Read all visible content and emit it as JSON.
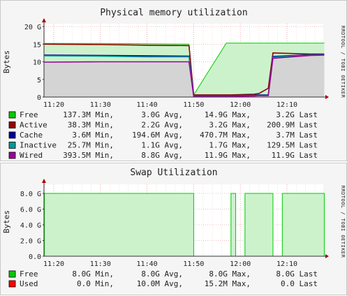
{
  "charts": [
    {
      "title": "Physical memory utilization",
      "ylabel": "Bytes",
      "watermark": "RRDTOOL / TOBI OETIKER",
      "yticks": [
        "0",
        "5",
        "10",
        "15",
        "20 G"
      ],
      "xticks": [
        "11:20",
        "11:30",
        "11:40",
        "11:50",
        "12:00",
        "12:10"
      ],
      "legend": [
        {
          "name": "Free",
          "color": "#00cc00",
          "min": "137.3M Min,",
          "avg": "3.0G Avg,",
          "max": "14.9G Max,",
          "last": "3.2G Last"
        },
        {
          "name": "Active",
          "color": "#990000",
          "min": "38.3M Min,",
          "avg": "2.2G Avg,",
          "max": "3.2G Max,",
          "last": "200.9M Last"
        },
        {
          "name": "Cache",
          "color": "#000099",
          "min": "3.6M Min,",
          "avg": "194.6M Avg,",
          "max": "470.7M Max,",
          "last": "3.7M Last"
        },
        {
          "name": "Inactive",
          "color": "#009999",
          "min": "25.7M Min,",
          "avg": "1.1G Avg,",
          "max": "1.7G Max,",
          "last": "129.5M Last"
        },
        {
          "name": "Wired",
          "color": "#990099",
          "min": "393.5M Min,",
          "avg": "8.8G Avg,",
          "max": "11.9G Max,",
          "last": "11.9G Last"
        }
      ]
    },
    {
      "title": "Swap Utilization",
      "ylabel": "Bytes",
      "watermark": "RRDTOOL / TOBI OETIKER",
      "yticks": [
        "0.0",
        "2.0 G",
        "4.0 G",
        "6.0 G",
        "8.0 G"
      ],
      "xticks": [
        "11:20",
        "11:30",
        "11:40",
        "11:50",
        "12:00",
        "12:10"
      ],
      "legend": [
        {
          "name": "Free",
          "color": "#00cc00",
          "min": "8.0G Min,",
          "avg": "8.0G Avg,",
          "max": "8.0G Max,",
          "last": "8.0G Last"
        },
        {
          "name": "Used",
          "color": "#ff0000",
          "min": "0.0 Min,",
          "avg": "10.0M Avg,",
          "max": "15.2M Max,",
          "last": "0.0 Last"
        }
      ]
    }
  ],
  "chart_data": [
    {
      "type": "area",
      "title": "Physical memory utilization",
      "ylabel": "Bytes",
      "xlabel": "",
      "ylim_GB": [
        0,
        20
      ],
      "x": [
        "11:18",
        "11:30",
        "11:40",
        "11:49",
        "11:50",
        "11:57",
        "11:58",
        "12:03",
        "12:04",
        "12:06",
        "12:07",
        "12:15",
        "12:18"
      ],
      "series": [
        {
          "name": "Wired",
          "values": [
            9.9,
            10.0,
            10.0,
            10.0,
            0.2,
            0.2,
            0.2,
            0.3,
            0.4,
            0.4,
            11.0,
            11.8,
            11.9
          ]
        },
        {
          "name": "Inactive",
          "values": [
            11.7,
            11.6,
            11.4,
            11.4,
            0.3,
            0.3,
            0.3,
            0.4,
            0.5,
            0.5,
            11.3,
            11.9,
            12.0
          ]
        },
        {
          "name": "Cache",
          "values": [
            11.9,
            11.8,
            11.7,
            11.6,
            0.4,
            0.4,
            0.4,
            0.5,
            0.6,
            0.6,
            11.5,
            12.0,
            12.1
          ]
        },
        {
          "name": "Active",
          "values": [
            15.0,
            14.9,
            14.7,
            14.6,
            0.6,
            0.6,
            0.6,
            0.8,
            1.0,
            2.5,
            12.5,
            12.2,
            12.2
          ]
        },
        {
          "name": "Free",
          "values": [
            15.2,
            15.2,
            15.1,
            15.0,
            0.6,
            15.3,
            15.3,
            15.3,
            15.3,
            15.3,
            15.3,
            15.3,
            15.3
          ]
        }
      ]
    },
    {
      "type": "area",
      "title": "Swap Utilization",
      "ylabel": "Bytes",
      "xlabel": "",
      "ylim_GB": [
        0,
        8.8
      ],
      "segments": [
        {
          "name": "Free",
          "start": "11:18",
          "end": "11:50",
          "value_GB": 8.0
        },
        {
          "name": "Free",
          "start": "11:58",
          "end": "11:59",
          "value_GB": 8.0
        },
        {
          "name": "Free",
          "start": "12:01",
          "end": "12:07",
          "value_GB": 8.0
        },
        {
          "name": "Free",
          "start": "12:09",
          "end": "12:18",
          "value_GB": 8.0
        }
      ],
      "series": [
        {
          "name": "Used",
          "values": [
            0.0
          ]
        }
      ]
    }
  ]
}
